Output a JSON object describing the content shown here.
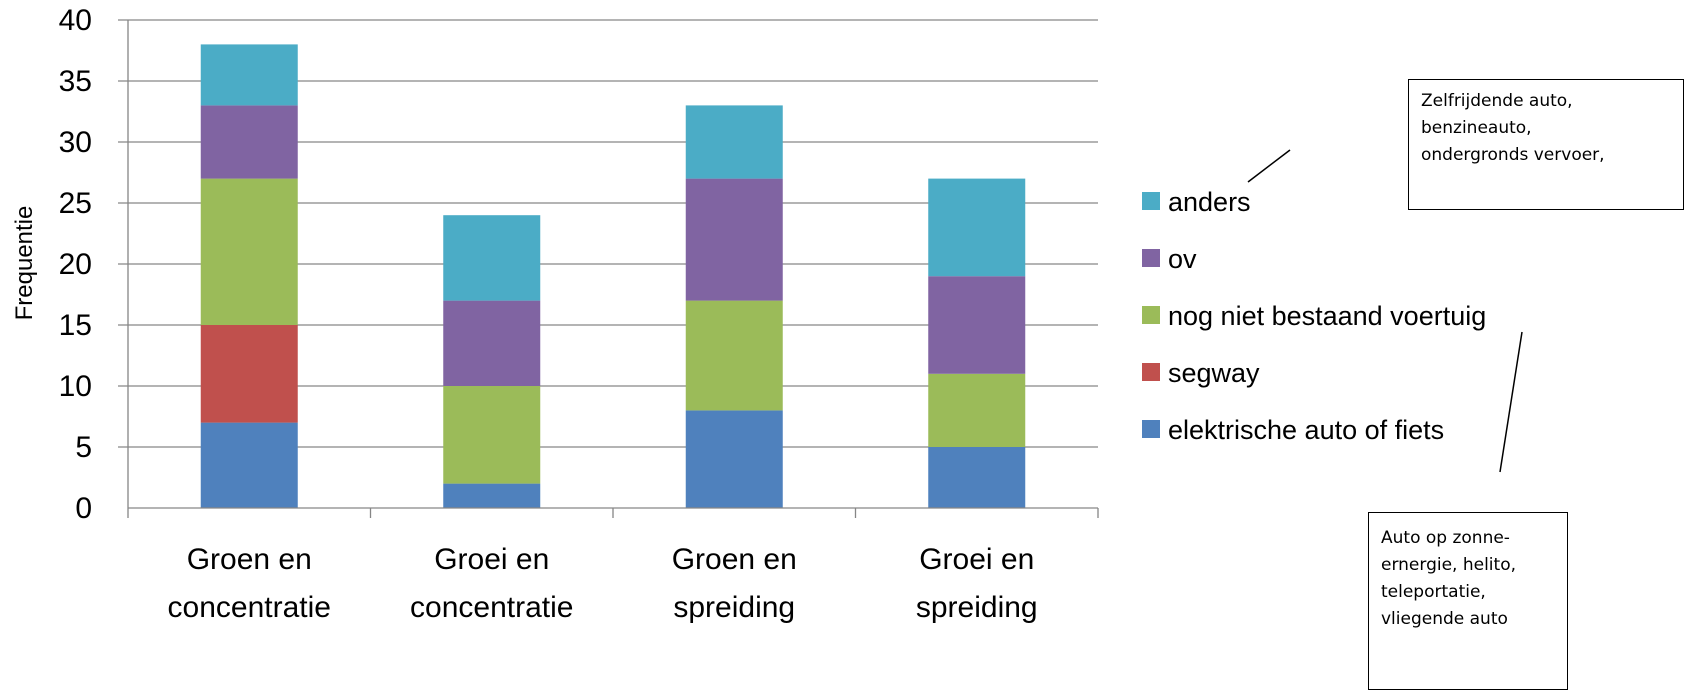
{
  "chart_data": {
    "type": "bar",
    "stacked": true,
    "categories": [
      [
        "Groen en",
        "concentratie"
      ],
      [
        "Groei en",
        "concentratie"
      ],
      [
        "Groen en",
        "spreiding"
      ],
      [
        "Groei en",
        "spreiding"
      ]
    ],
    "series": [
      {
        "name": "elektrische auto of fiets",
        "color": "#4F81BD",
        "values": [
          7,
          2,
          8,
          5
        ]
      },
      {
        "name": "segway",
        "color": "#C0504D",
        "values": [
          8,
          0,
          0,
          0
        ]
      },
      {
        "name": "nog niet bestaand voertuig",
        "color": "#9BBB59",
        "values": [
          12,
          8,
          9,
          6
        ]
      },
      {
        "name": "ov",
        "color": "#8064A2",
        "values": [
          6,
          7,
          10,
          8
        ]
      },
      {
        "name": "anders",
        "color": "#4BACC6",
        "values": [
          5,
          7,
          6,
          8
        ]
      }
    ],
    "ylabel": "Frequentie",
    "ylim": [
      0,
      40
    ],
    "yticks": [
      0,
      5,
      10,
      15,
      20,
      25,
      30,
      35,
      40
    ],
    "grid": true,
    "legend": "right",
    "legend_order": [
      "anders",
      "ov",
      "nog niet bestaand voertuig",
      "segway",
      "elektrische auto of fiets"
    ],
    "annotations": [
      {
        "target": "anders",
        "lines": [
          "Zelfrijdende auto,",
          "benzineauto,",
          "ondergronds vervoer,"
        ]
      },
      {
        "target": "nog niet bestaand voertuig",
        "lines": [
          "Auto op zonne-",
          "ernergie, helito,",
          "teleportatie,",
          "vliegende auto"
        ]
      }
    ]
  }
}
